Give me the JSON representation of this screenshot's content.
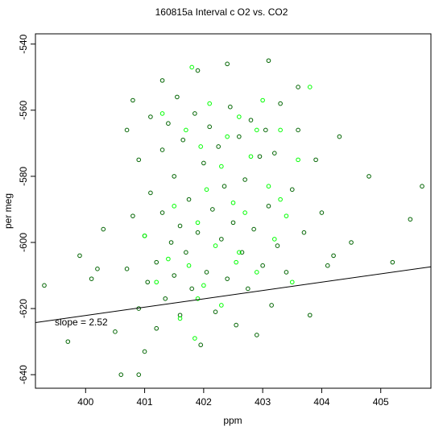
{
  "chart_data": {
    "type": "scatter",
    "title": "160815a   Interval c O2 vs. CO2",
    "xlabel": "ppm",
    "ylabel": "per meg",
    "xlim": [
      399.15,
      405.85
    ],
    "ylim": [
      -644.1,
      -536.9
    ],
    "x_ticks": [
      400,
      401,
      402,
      403,
      404,
      405
    ],
    "y_ticks": [
      -640,
      -620,
      -600,
      -580,
      -560,
      -540
    ],
    "grid": false,
    "legend": "none",
    "fit_line": {
      "slope": 2.52,
      "intercept": -1630.1
    },
    "annotation": "slope =  2.52",
    "colors": {
      "series_dark": "#006400",
      "series_bright": "#00ff00",
      "fit_line": "#000000"
    },
    "series": [
      {
        "color": "dark",
        "x": [
          399.3,
          399.7,
          399.9,
          400.1,
          400.3,
          400.5,
          400.6,
          400.7,
          400.7,
          400.8,
          400.8,
          400.9,
          400.9,
          401.0,
          401.0,
          401.05,
          401.1,
          401.1,
          401.2,
          401.2,
          401.3,
          401.3,
          401.35,
          401.4,
          401.45,
          401.5,
          401.5,
          401.55,
          401.6,
          401.6,
          401.65,
          401.7,
          401.75,
          401.8,
          401.85,
          401.9,
          401.95,
          402.0,
          402.05,
          402.1,
          402.15,
          402.2,
          402.25,
          402.3,
          402.35,
          402.4,
          402.45,
          402.5,
          402.55,
          402.6,
          402.65,
          402.7,
          402.75,
          402.8,
          402.85,
          402.9,
          402.95,
          403.0,
          403.05,
          403.1,
          403.15,
          403.2,
          403.25,
          403.3,
          403.4,
          403.5,
          403.6,
          403.7,
          403.8,
          403.9,
          404.0,
          404.1,
          404.3,
          404.5,
          404.8,
          405.2,
          405.5,
          405.7,
          400.2,
          400.9,
          401.3,
          401.9,
          402.4,
          403.1,
          403.6,
          404.2
        ],
        "y": [
          -613,
          -630,
          -604,
          -611,
          -596,
          -627,
          -640,
          -566,
          -608,
          -592,
          -557,
          -620,
          -575,
          -633,
          -598,
          -612,
          -562,
          -585,
          -606,
          -626,
          -572,
          -591,
          -617,
          -564,
          -600,
          -580,
          -610,
          -556,
          -622,
          -595,
          -569,
          -603,
          -587,
          -614,
          -561,
          -597,
          -631,
          -576,
          -609,
          -565,
          -590,
          -621,
          -571,
          -599,
          -583,
          -611,
          -559,
          -594,
          -625,
          -568,
          -603,
          -581,
          -614,
          -563,
          -596,
          -628,
          -574,
          -607,
          -566,
          -589,
          -619,
          -573,
          -601,
          -558,
          -609,
          -584,
          -566,
          -597,
          -622,
          -575,
          -591,
          -607,
          -568,
          -600,
          -580,
          -606,
          -593,
          -583,
          -608,
          -640,
          -551,
          -548,
          -546,
          -545,
          -553,
          -604
        ]
      },
      {
        "color": "bright",
        "x": [
          401.0,
          401.2,
          401.3,
          401.4,
          401.5,
          401.6,
          401.7,
          401.75,
          401.8,
          401.85,
          401.9,
          401.95,
          402.0,
          402.05,
          402.1,
          402.2,
          402.3,
          402.4,
          402.5,
          402.55,
          402.6,
          402.7,
          402.8,
          402.9,
          403.0,
          403.1,
          403.2,
          403.3,
          403.4,
          403.5,
          403.6,
          403.8,
          401.9,
          402.3,
          402.6,
          402.9,
          403.3
        ],
        "y": [
          -598,
          -612,
          -561,
          -605,
          -589,
          -623,
          -566,
          -607,
          -547,
          -629,
          -594,
          -571,
          -613,
          -584,
          -558,
          -601,
          -619,
          -568,
          -588,
          -606,
          -562,
          -591,
          -574,
          -609,
          -557,
          -583,
          -599,
          -566,
          -592,
          -612,
          -575,
          -553,
          -617,
          -577,
          -603,
          -566,
          -587
        ]
      }
    ]
  }
}
